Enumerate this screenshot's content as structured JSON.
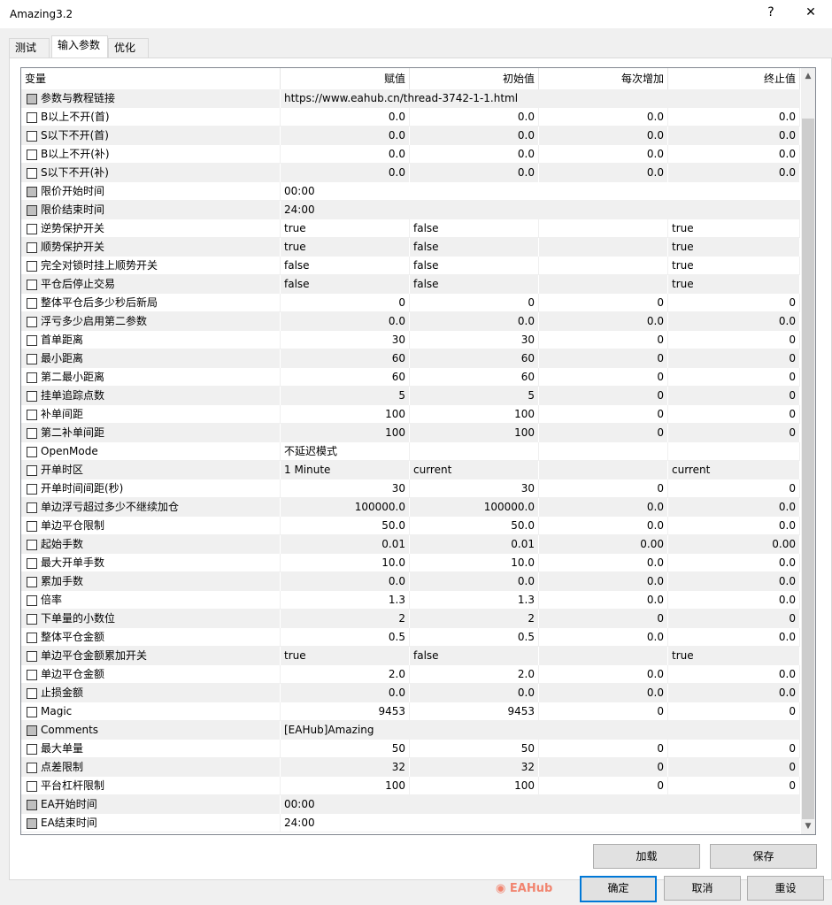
{
  "window": {
    "title": "Amazing3.2",
    "help": "?",
    "close": "✕"
  },
  "tabs": [
    {
      "label": "测试"
    },
    {
      "label": "输入参数"
    },
    {
      "label": "优化"
    }
  ],
  "columns": [
    "变量",
    "赋值",
    "初始值",
    "每次增加",
    "终止值"
  ],
  "rows": [
    [
      "参数与教程链接",
      "https://www.eahub.cn/thread-3742-1-1.html",
      "",
      "",
      "",
      true
    ],
    [
      "B以上不开(首)",
      "0.0",
      "0.0",
      "0.0",
      "0.0",
      false
    ],
    [
      "S以下不开(首)",
      "0.0",
      "0.0",
      "0.0",
      "0.0",
      false
    ],
    [
      "B以上不开(补)",
      "0.0",
      "0.0",
      "0.0",
      "0.0",
      false
    ],
    [
      "S以下不开(补)",
      "0.0",
      "0.0",
      "0.0",
      "0.0",
      false
    ],
    [
      "限价开始时间",
      "00:00",
      "",
      "",
      "",
      true
    ],
    [
      "限价结束时间",
      "24:00",
      "",
      "",
      "",
      true
    ],
    [
      "逆势保护开关",
      "true",
      "false",
      "",
      "true",
      false
    ],
    [
      "顺势保护开关",
      "true",
      "false",
      "",
      "true",
      false
    ],
    [
      "完全对锁时挂上顺势开关",
      "false",
      "false",
      "",
      "true",
      false
    ],
    [
      "平仓后停止交易",
      "false",
      "false",
      "",
      "true",
      false
    ],
    [
      "整体平仓后多少秒后新局",
      "0",
      "0",
      "0",
      "0",
      false
    ],
    [
      "浮亏多少启用第二参数",
      "0.0",
      "0.0",
      "0.0",
      "0.0",
      false
    ],
    [
      "首单距离",
      "30",
      "30",
      "0",
      "0",
      false
    ],
    [
      "最小距离",
      "60",
      "60",
      "0",
      "0",
      false
    ],
    [
      "第二最小距离",
      "60",
      "60",
      "0",
      "0",
      false
    ],
    [
      "挂单追踪点数",
      "5",
      "5",
      "0",
      "0",
      false
    ],
    [
      "补单间距",
      "100",
      "100",
      "0",
      "0",
      false
    ],
    [
      "第二补单间距",
      "100",
      "100",
      "0",
      "0",
      false
    ],
    [
      "OpenMode",
      "不延迟模式",
      "",
      "",
      "",
      false
    ],
    [
      "开单时区",
      "1 Minute",
      "current",
      "",
      "current",
      false
    ],
    [
      "开单时间间距(秒)",
      "30",
      "30",
      "0",
      "0",
      false
    ],
    [
      "单边浮亏超过多少不继续加仓",
      "100000.0",
      "100000.0",
      "0.0",
      "0.0",
      false
    ],
    [
      "单边平仓限制",
      "50.0",
      "50.0",
      "0.0",
      "0.0",
      false
    ],
    [
      "起始手数",
      "0.01",
      "0.01",
      "0.00",
      "0.00",
      false
    ],
    [
      "最大开单手数",
      "10.0",
      "10.0",
      "0.0",
      "0.0",
      false
    ],
    [
      "累加手数",
      "0.0",
      "0.0",
      "0.0",
      "0.0",
      false
    ],
    [
      "倍率",
      "1.3",
      "1.3",
      "0.0",
      "0.0",
      false
    ],
    [
      "下单量的小数位",
      "2",
      "2",
      "0",
      "0",
      false
    ],
    [
      "整体平仓金额",
      "0.5",
      "0.5",
      "0.0",
      "0.0",
      false
    ],
    [
      "单边平仓金额累加开关",
      "true",
      "false",
      "",
      "true",
      false
    ],
    [
      "单边平仓金额",
      "2.0",
      "2.0",
      "0.0",
      "0.0",
      false
    ],
    [
      "止损金额",
      "0.0",
      "0.0",
      "0.0",
      "0.0",
      false
    ],
    [
      "Magic",
      "9453",
      "9453",
      "0",
      "0",
      false
    ],
    [
      "Comments",
      "[EAHub]Amazing",
      "",
      "",
      "",
      true
    ],
    [
      "最大单量",
      "50",
      "50",
      "0",
      "0",
      false
    ],
    [
      "点差限制",
      "32",
      "32",
      "0",
      "0",
      false
    ],
    [
      "平台杠杆限制",
      "100",
      "100",
      "0",
      "0",
      false
    ],
    [
      "EA开始时间",
      "00:00",
      "",
      "",
      "",
      true
    ],
    [
      "EA结束时间",
      "24:00",
      "",
      "",
      "",
      true
    ]
  ],
  "buttons": {
    "load": "加载",
    "save": "保存",
    "ok": "确定",
    "cancel": "取消",
    "reset": "重设"
  },
  "watermark": "EAHub",
  "colors": {
    "accent": "#0078d7",
    "row_alt": "#f0f0f0"
  }
}
